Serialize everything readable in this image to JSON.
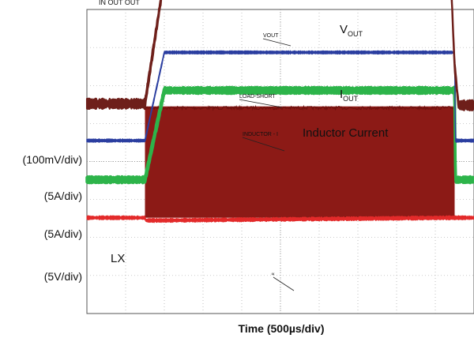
{
  "chart_data": {
    "type": "line",
    "top_caption_fragment": "IN         OUT           OUT",
    "xlabel": "Time (500µs/div)",
    "grid": "on",
    "divisions": {
      "x": 10,
      "y": 8
    },
    "series": [
      {
        "key": "vout",
        "name": "V",
        "name_sub": "OUT",
        "probe_tag": "VOUT",
        "scale": "(100mV/div)",
        "color": "#6e1f1a",
        "noise": 0.1,
        "thickness": 6,
        "x": [
          0,
          1.5,
          2.0,
          2.05,
          2.2,
          2.6,
          3.0,
          4.0,
          9.4,
          9.5,
          9.6,
          10.0
        ],
        "level": [
          1.52,
          1.52,
          4.85,
          4.97,
          5.04,
          4.9,
          4.86,
          4.86,
          4.86,
          2.5,
          1.48,
          1.48
        ]
      },
      {
        "key": "iout",
        "name": "I",
        "name_sub": "OUT",
        "probe_tag": "LOAD-SHORT",
        "scale": "(5A/div)",
        "color": "#2b3ea0",
        "noise": 0.03,
        "thickness": 4,
        "x": [
          0,
          1.5,
          2.0,
          2.1,
          9.5,
          9.52,
          10.0
        ],
        "level": [
          0.55,
          0.55,
          2.87,
          2.87,
          2.87,
          0.55,
          0.55
        ]
      },
      {
        "key": "inductor",
        "name": "Inductor Current",
        "probe_tag": "INDUCTOR - I",
        "scale": "(5A/div)",
        "color": "#2db44a",
        "noise": 0.06,
        "thickness": 10,
        "x": [
          0,
          1.5,
          2.0,
          2.1,
          9.5,
          9.52,
          10.0
        ],
        "level": [
          -0.48,
          -0.48,
          1.87,
          1.87,
          1.87,
          -0.48,
          -0.48
        ]
      },
      {
        "key": "lx",
        "name": "LX",
        "probe_tag": "∝",
        "scale": "(5V/div)",
        "color": "#e32a2a",
        "noise": 0.04,
        "thickness": 3,
        "x": [
          0,
          1.5,
          1.52,
          2.0,
          9.5,
          9.52,
          10.0
        ],
        "level": [
          -1.48,
          -1.48,
          -1.55,
          -1.55,
          -1.48,
          -1.48,
          -1.48
        ]
      }
    ],
    "switching_burst": {
      "series": "lx",
      "x_start": 1.5,
      "x_end": 9.5,
      "level_low": -1.48,
      "level_high": 1.45,
      "color": "#8c1a16"
    }
  }
}
